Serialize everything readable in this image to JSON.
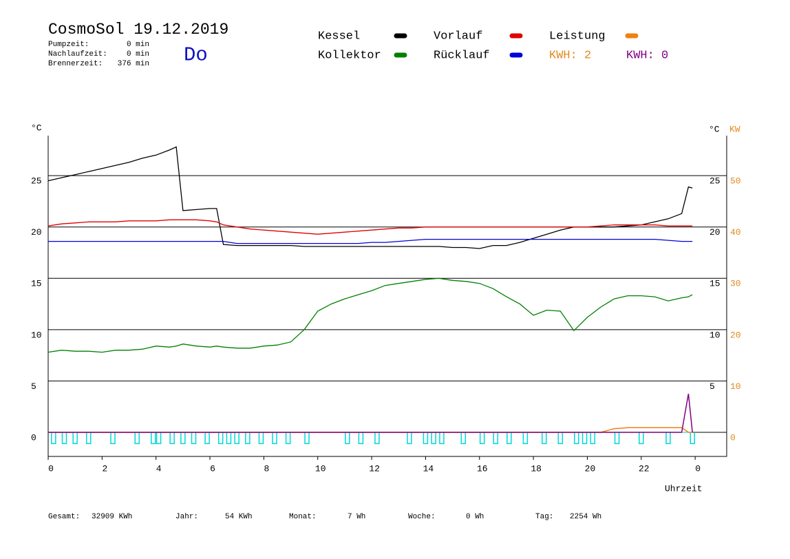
{
  "header": {
    "title": "CosmoSol 19.12.2019",
    "day": "Do",
    "stats": [
      {
        "label": "Pumpzeit:",
        "value": "0 min"
      },
      {
        "label": "Nachlaufzeit:",
        "value": "0 min"
      },
      {
        "label": "Brennerzeit:",
        "value": "376 min"
      }
    ]
  },
  "chart_data": {
    "type": "line",
    "x_label": "Uhrzeit",
    "y_label": "°C",
    "y_label_right": "°C",
    "y2_label": "KW",
    "xlim": [
      0,
      25.17
    ],
    "xticks": [
      0,
      2,
      4,
      6,
      8,
      10,
      12,
      14,
      16,
      18,
      20,
      22,
      {
        "value": 24,
        "label": "0"
      }
    ],
    "ylim": [
      -2.35,
      28.9
    ],
    "yticks": [
      0,
      5,
      10,
      15,
      20,
      25
    ],
    "yticks_right": [
      5,
      10,
      15,
      20,
      25
    ],
    "y2lim": [
      -4.7,
      57.8
    ],
    "y2ticks": [
      0,
      10,
      20,
      30,
      40,
      50
    ],
    "y2_color": "#e08a1e",
    "grid": true,
    "x": [
      0,
      0.5,
      1,
      1.5,
      2,
      2.5,
      3,
      3.5,
      4,
      4.5,
      4.75,
      5,
      5.5,
      6,
      6.25,
      6.5,
      7,
      7.5,
      8,
      8.5,
      9,
      9.5,
      10,
      10.5,
      11,
      11.5,
      12,
      12.5,
      13,
      13.5,
      14,
      14.5,
      15,
      15.5,
      16,
      16.5,
      17,
      17.5,
      18,
      18.5,
      19,
      19.5,
      20,
      20.5,
      21,
      21.5,
      22,
      22.5,
      23,
      23.5,
      23.75,
      23.9
    ],
    "series": [
      {
        "name": "Kessel",
        "color": "#000000",
        "values": [
          24.5,
          24.8,
          25.1,
          25.4,
          25.7,
          26.0,
          26.3,
          26.7,
          27.0,
          27.5,
          27.8,
          21.6,
          21.7,
          21.8,
          21.8,
          18.3,
          18.2,
          18.2,
          18.2,
          18.2,
          18.2,
          18.1,
          18.1,
          18.1,
          18.1,
          18.1,
          18.1,
          18.1,
          18.1,
          18.1,
          18.1,
          18.1,
          18.0,
          18.0,
          17.9,
          18.2,
          18.2,
          18.5,
          18.9,
          19.3,
          19.7,
          20.0,
          20.0,
          20.0,
          20.0,
          20.1,
          20.2,
          20.5,
          20.8,
          21.3,
          23.9,
          23.8
        ]
      },
      {
        "name": "Kollektor",
        "color": "#008000",
        "values": [
          7.8,
          8.0,
          7.9,
          7.9,
          7.8,
          8.0,
          8.0,
          8.1,
          8.4,
          8.3,
          8.4,
          8.6,
          8.4,
          8.3,
          8.4,
          8.3,
          8.2,
          8.2,
          8.4,
          8.5,
          8.8,
          10.0,
          11.8,
          12.5,
          13.0,
          13.4,
          13.8,
          14.3,
          14.5,
          14.7,
          14.9,
          15.0,
          14.8,
          14.7,
          14.5,
          14.0,
          13.2,
          12.5,
          11.4,
          11.9,
          11.8,
          9.9,
          11.2,
          12.2,
          13.0,
          13.3,
          13.3,
          13.2,
          12.8,
          13.1,
          13.2,
          13.4
        ]
      },
      {
        "name": "Vorlauf",
        "color": "#e00000",
        "values": [
          20.1,
          20.3,
          20.4,
          20.5,
          20.5,
          20.5,
          20.6,
          20.6,
          20.6,
          20.7,
          20.7,
          20.7,
          20.7,
          20.6,
          20.5,
          20.2,
          20.0,
          19.8,
          19.7,
          19.6,
          19.5,
          19.4,
          19.3,
          19.4,
          19.5,
          19.6,
          19.7,
          19.8,
          19.9,
          19.9,
          20.0,
          20.0,
          20.0,
          20.0,
          20.0,
          20.0,
          20.0,
          20.0,
          20.0,
          20.0,
          20.0,
          20.0,
          20.0,
          20.1,
          20.2,
          20.2,
          20.2,
          20.2,
          20.1,
          20.1,
          20.1,
          20.1
        ]
      },
      {
        "name": "Rücklauf",
        "color": "#0000e0",
        "values": [
          18.6,
          18.6,
          18.6,
          18.6,
          18.6,
          18.6,
          18.6,
          18.6,
          18.6,
          18.6,
          18.6,
          18.6,
          18.6,
          18.6,
          18.6,
          18.6,
          18.4,
          18.4,
          18.4,
          18.4,
          18.4,
          18.4,
          18.4,
          18.4,
          18.4,
          18.4,
          18.5,
          18.5,
          18.6,
          18.7,
          18.8,
          18.8,
          18.8,
          18.8,
          18.8,
          18.8,
          18.8,
          18.8,
          18.8,
          18.8,
          18.8,
          18.8,
          18.8,
          18.8,
          18.8,
          18.8,
          18.8,
          18.8,
          18.7,
          18.6,
          18.6,
          18.6
        ]
      },
      {
        "name": "Leistung",
        "color": "#f08010",
        "axis": "y2",
        "values": [
          0,
          0,
          0,
          0,
          0,
          0,
          0,
          0,
          0,
          0,
          0,
          0,
          0,
          0,
          0,
          0,
          0,
          0,
          0,
          0,
          0,
          0,
          0,
          0,
          0,
          0,
          0,
          0,
          0,
          0,
          0,
          0,
          0,
          0,
          0,
          0,
          0,
          0,
          0,
          0,
          0,
          0,
          0,
          0,
          0.7,
          0.9,
          0.9,
          0.9,
          0.9,
          0.9,
          0,
          0
        ]
      },
      {
        "color": "#800080",
        "axis": "y2",
        "values": [
          0,
          0,
          0,
          0,
          0,
          0,
          0,
          0,
          0,
          0,
          0,
          0,
          0,
          0,
          0,
          0,
          0,
          0,
          0,
          0,
          0,
          0,
          0,
          0,
          0,
          0,
          0,
          0,
          0,
          0,
          0,
          0,
          0,
          0,
          0,
          0,
          0,
          0,
          0,
          0,
          0,
          0,
          0,
          0,
          0,
          0,
          0,
          0,
          0,
          0,
          7.5,
          0
        ]
      }
    ],
    "pump": {
      "color": "#00d8d8",
      "off": 0,
      "on": -1.1,
      "pulses": [
        0.2,
        0.6,
        1.0,
        1.5,
        2.4,
        3.3,
        3.9,
        4.1,
        4.6,
        5.0,
        5.4,
        5.9,
        6.4,
        6.7,
        7.0,
        7.4,
        7.9,
        8.4,
        8.9,
        9.6,
        11.1,
        11.6,
        12.2,
        13.4,
        14.0,
        14.3,
        14.6,
        15.4,
        16.1,
        16.6,
        17.1,
        17.7,
        18.4,
        19.0,
        19.6,
        19.9,
        20.2,
        21.1,
        22.0,
        23.0,
        23.9
      ]
    },
    "annotations": [
      {
        "text": "KWH: 2",
        "color": "#e08a1e"
      },
      {
        "text": "KWH: 0",
        "color": "#800080"
      }
    ]
  },
  "footer": [
    {
      "label": "Gesamt:",
      "value": "32909 KWh"
    },
    {
      "label": "Jahr:",
      "value": "54 KWh"
    },
    {
      "label": "Monat:",
      "value": "7 Wh"
    },
    {
      "label": "Woche:",
      "value": "0 Wh"
    },
    {
      "label": "Tag:",
      "value": "2254 Wh"
    }
  ]
}
